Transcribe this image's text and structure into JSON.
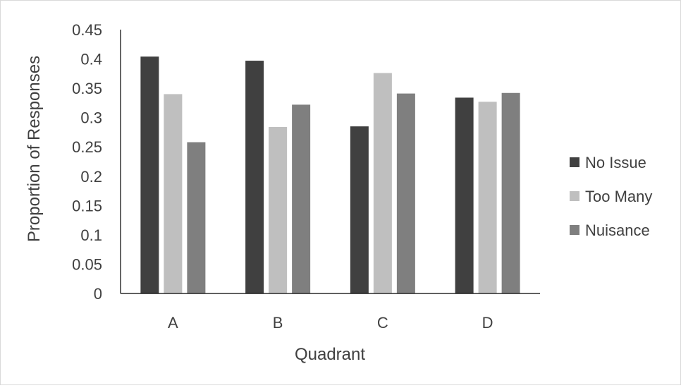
{
  "chart_data": {
    "type": "bar",
    "title": "",
    "xlabel": "Quadrant",
    "ylabel": "Proportion of Responses",
    "categories": [
      "A",
      "B",
      "C",
      "D"
    ],
    "ylim": [
      0,
      0.45
    ],
    "yticks": [
      "0",
      "0.05",
      "0.1",
      "0.15",
      "0.2",
      "0.25",
      "0.3",
      "0.35",
      "0.4",
      "0.45"
    ],
    "grid": false,
    "legend_position": "right",
    "series": [
      {
        "name": "No Issue",
        "color": "#404040",
        "values": [
          0.404,
          0.397,
          0.285,
          0.334
        ]
      },
      {
        "name": "Too Many",
        "color": "#bfbfbf",
        "values": [
          0.34,
          0.284,
          0.376,
          0.327
        ]
      },
      {
        "name": "Nuisance",
        "color": "#7f7f7f",
        "values": [
          0.258,
          0.322,
          0.341,
          0.342
        ]
      }
    ]
  }
}
